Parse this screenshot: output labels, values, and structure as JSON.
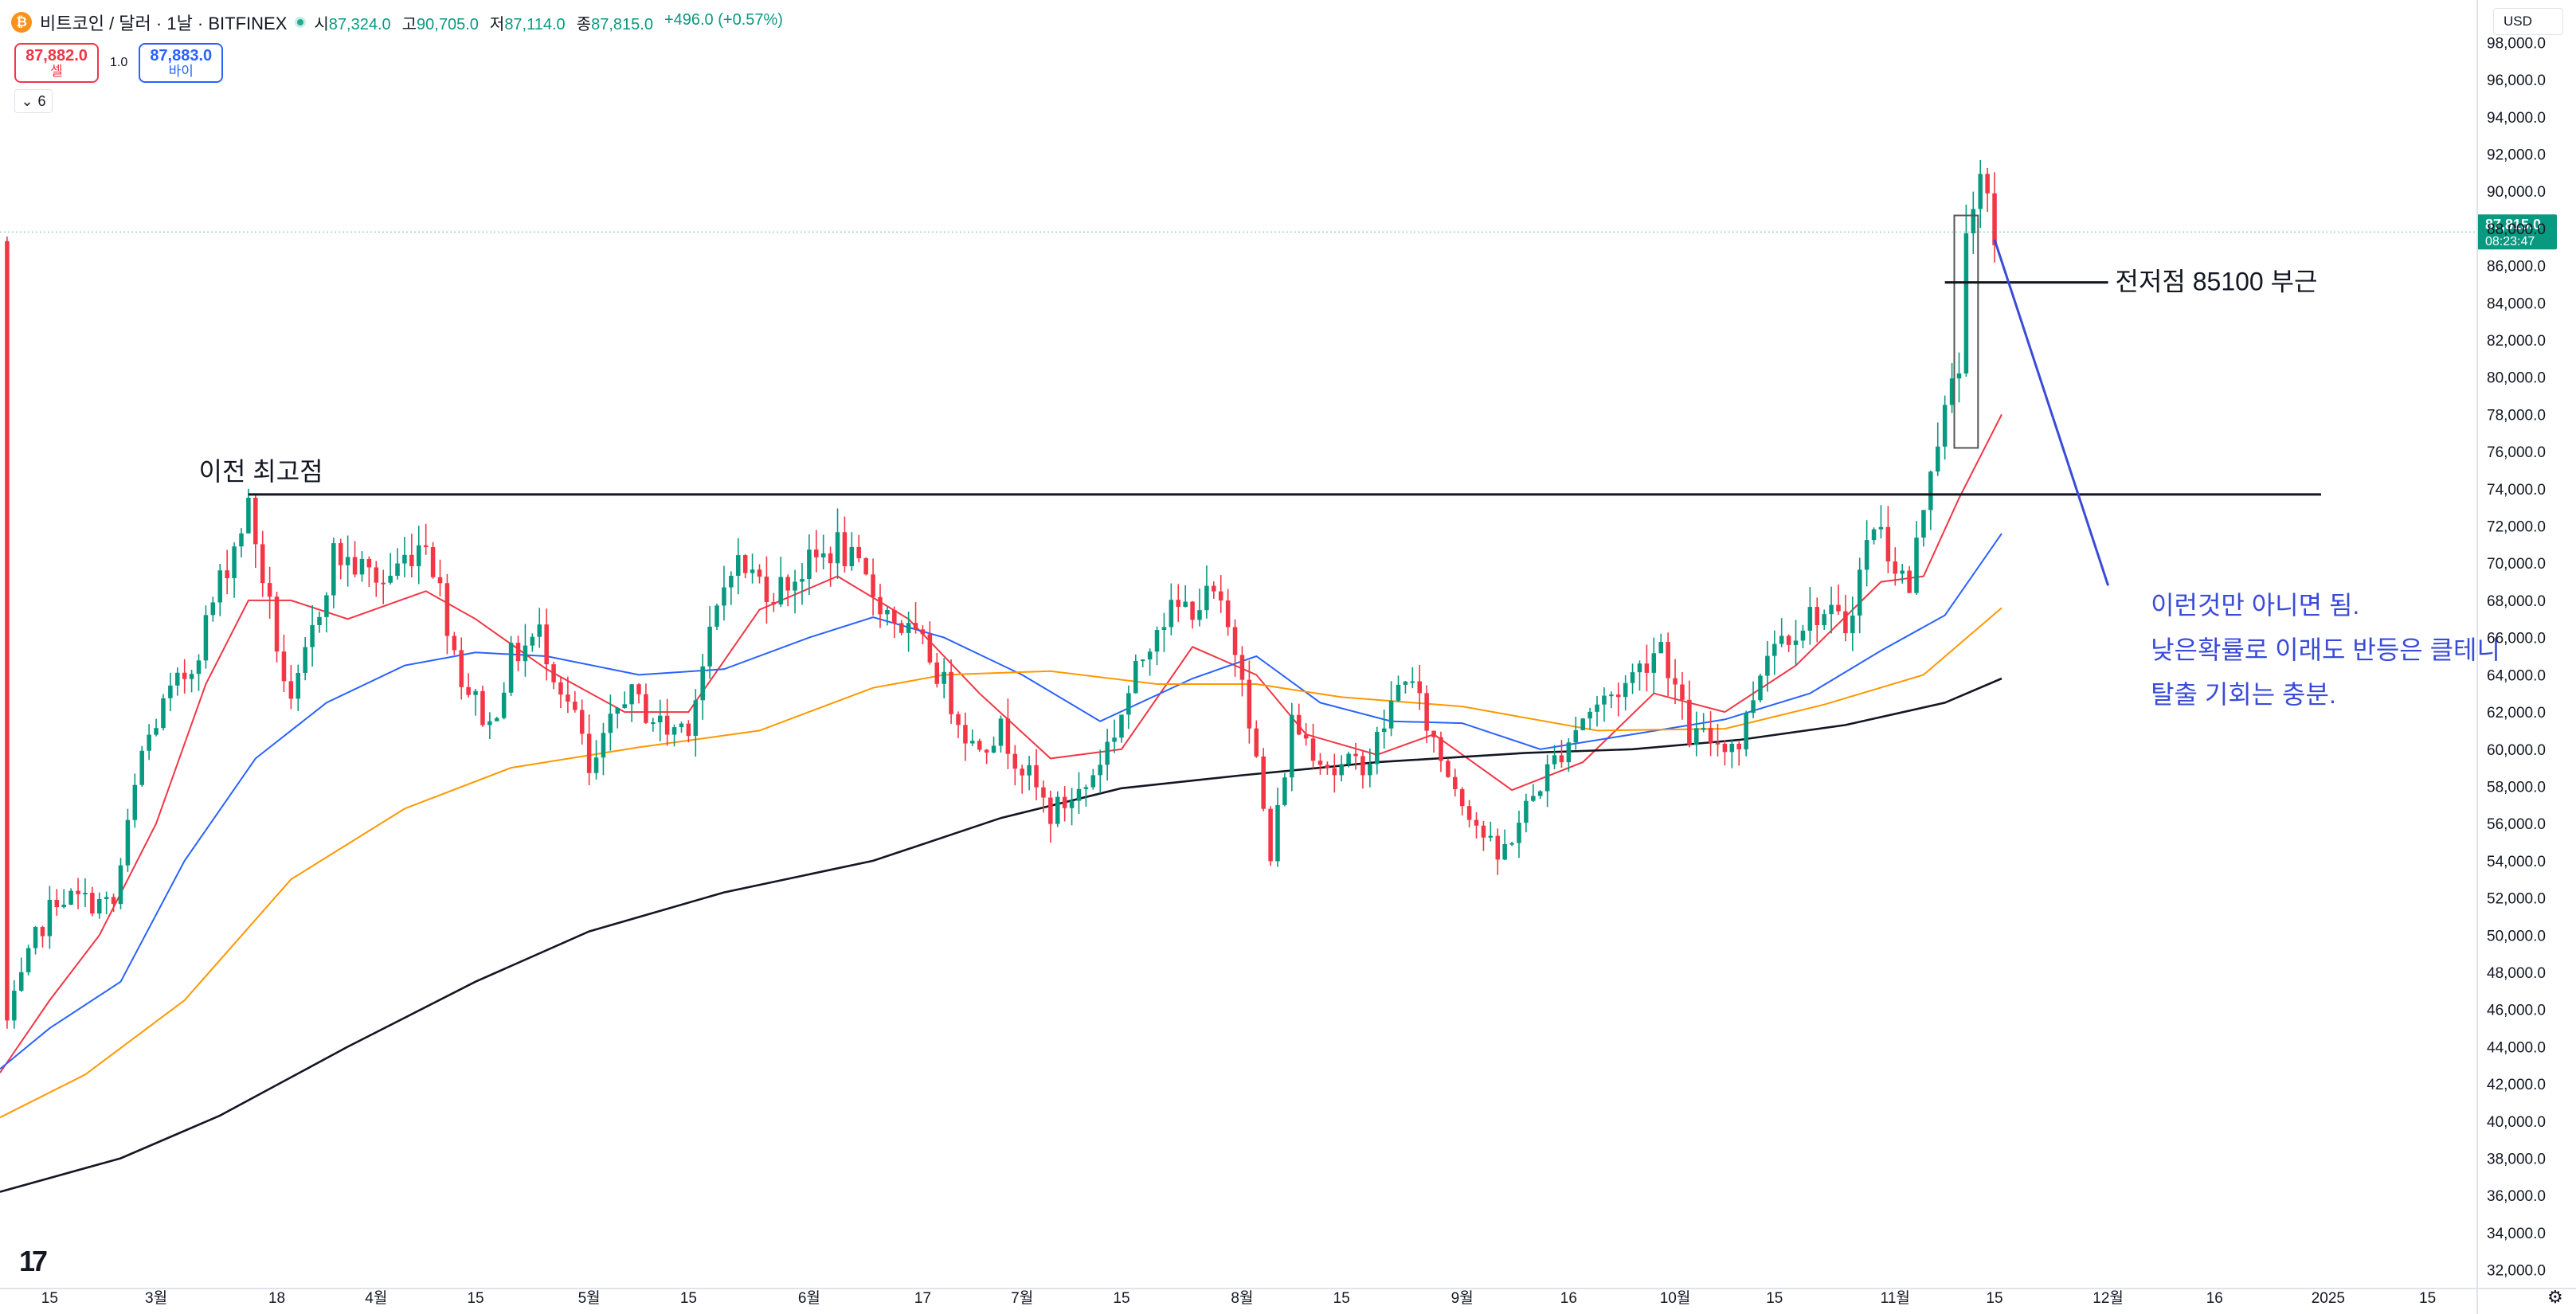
{
  "header": {
    "symbol": "비트코인 / 달러 · 1날 · BITFINEX",
    "icon_glyph": "₿",
    "ohlc": [
      {
        "key": "시",
        "value": "87,324.0"
      },
      {
        "key": "고",
        "value": "90,705.0"
      },
      {
        "key": "저",
        "value": "87,114.0"
      },
      {
        "key": "종",
        "value": "87,815.0"
      },
      {
        "key": "",
        "value": "+496.0 (+0.57%)"
      }
    ]
  },
  "trade": {
    "sell_price": "87,882.0",
    "sell_label": "셀",
    "spread": "1.0",
    "buy_price": "87,883.0",
    "buy_label": "바이"
  },
  "indicator_toggle": {
    "count": "6"
  },
  "currency": "USD",
  "logo_text": "17",
  "colors": {
    "up": "#089981",
    "down": "#f23645",
    "ema_red": "#f23645",
    "ema_blue": "#2962ff",
    "ema_orange": "#ff9800",
    "ema_black": "#131722",
    "annotation_blue": "#3a4bd8",
    "price_tag": "#089981"
  },
  "chart_data": {
    "type": "candlestick",
    "title": "",
    "y_axis": {
      "min": 31000,
      "max": 99000,
      "ticks": [
        32000,
        34000,
        36000,
        38000,
        40000,
        42000,
        44000,
        46000,
        48000,
        50000,
        52000,
        54000,
        56000,
        58000,
        60000,
        62000,
        64000,
        66000,
        68000,
        70000,
        72000,
        74000,
        76000,
        78000,
        80000,
        82000,
        84000,
        86000,
        88000,
        90000,
        92000,
        94000,
        96000,
        98000
      ],
      "tick_labels": [
        "32,000.0",
        "34,000.0",
        "36,000.0",
        "38,000.0",
        "40,000.0",
        "42,000.0",
        "44,000.0",
        "46,000.0",
        "48,000.0",
        "50,000.0",
        "52,000.0",
        "54,000.0",
        "56,000.0",
        "58,000.0",
        "60,000.0",
        "62,000.0",
        "64,000.0",
        "66,000.0",
        "68,000.0",
        "70,000.0",
        "72,000.0",
        "74,000.0",
        "76,000.0",
        "78,000.0",
        "80,000.0",
        "82,000.0",
        "84,000.0",
        "86,000.0",
        "88,000.0",
        "90,000.0",
        "92,000.0",
        "94,000.0",
        "96,000.0",
        "98,000.0"
      ]
    },
    "x_axis": {
      "start_date": "2024-02-08",
      "end_date": "2025-01-22",
      "tick_labels": [
        {
          "date": "2024-02-15",
          "label": "15"
        },
        {
          "date": "2024-03-01",
          "label": "3월"
        },
        {
          "date": "2024-03-18",
          "label": "18"
        },
        {
          "date": "2024-04-01",
          "label": "4월"
        },
        {
          "date": "2024-04-15",
          "label": "15"
        },
        {
          "date": "2024-05-01",
          "label": "5월"
        },
        {
          "date": "2024-05-15",
          "label": "15"
        },
        {
          "date": "2024-06-01",
          "label": "6월"
        },
        {
          "date": "2024-06-17",
          "label": "17"
        },
        {
          "date": "2024-07-01",
          "label": "7월"
        },
        {
          "date": "2024-07-15",
          "label": "15"
        },
        {
          "date": "2024-08-01",
          "label": "8월"
        },
        {
          "date": "2024-08-15",
          "label": "15"
        },
        {
          "date": "2024-09-01",
          "label": "9월"
        },
        {
          "date": "2024-09-16",
          "label": "16"
        },
        {
          "date": "2024-10-01",
          "label": "10월"
        },
        {
          "date": "2024-10-15",
          "label": "15"
        },
        {
          "date": "2024-11-01",
          "label": "11월"
        },
        {
          "date": "2024-11-15",
          "label": "15"
        },
        {
          "date": "2024-12-01",
          "label": "12월"
        },
        {
          "date": "2024-12-16",
          "label": "16"
        },
        {
          "date": "2025-01-01",
          "label": "2025"
        },
        {
          "date": "2025-01-15",
          "label": "15"
        }
      ]
    },
    "ohlc_path": [
      [
        "2024-02-09",
        45300
      ],
      [
        "2024-02-13",
        49800
      ],
      [
        "2024-02-16",
        52100
      ],
      [
        "2024-02-24",
        51600
      ],
      [
        "2024-02-28",
        59800
      ],
      [
        "2024-03-02",
        62300
      ],
      [
        "2024-03-06",
        64500
      ],
      [
        "2024-03-10",
        69000
      ],
      [
        "2024-03-14",
        73000
      ],
      [
        "2024-03-20",
        62000
      ],
      [
        "2024-03-26",
        70500
      ],
      [
        "2024-04-02",
        69000
      ],
      [
        "2024-04-08",
        71500
      ],
      [
        "2024-04-13",
        63900
      ],
      [
        "2024-04-17",
        61200
      ],
      [
        "2024-04-20",
        64900
      ],
      [
        "2024-04-24",
        66200
      ],
      [
        "2024-04-30",
        60600
      ],
      [
        "2024-05-01",
        58300
      ],
      [
        "2024-05-06",
        63100
      ],
      [
        "2024-05-12",
        61000
      ],
      [
        "2024-05-15",
        61500
      ],
      [
        "2024-05-21",
        70200
      ],
      [
        "2024-05-27",
        68500
      ],
      [
        "2024-06-05",
        71000
      ],
      [
        "2024-06-12",
        67400
      ],
      [
        "2024-06-18",
        65000
      ],
      [
        "2024-06-24",
        60200
      ],
      [
        "2024-06-28",
        61000
      ],
      [
        "2024-07-05",
        56500
      ],
      [
        "2024-07-10",
        58000
      ],
      [
        "2024-07-14",
        61000
      ],
      [
        "2024-07-20",
        67000
      ],
      [
        "2024-07-28",
        68200
      ],
      [
        "2024-08-01",
        64500
      ],
      [
        "2024-08-05",
        54000
      ],
      [
        "2024-08-08",
        61500
      ],
      [
        "2024-08-14",
        58800
      ],
      [
        "2024-08-19",
        59500
      ],
      [
        "2024-08-24",
        64200
      ],
      [
        "2024-08-29",
        59500
      ],
      [
        "2024-09-06",
        54000
      ],
      [
        "2024-09-12",
        58200
      ],
      [
        "2024-09-18",
        61800
      ],
      [
        "2024-09-24",
        63500
      ],
      [
        "2024-09-29",
        65800
      ],
      [
        "2024-10-03",
        60700
      ],
      [
        "2024-10-10",
        60300
      ],
      [
        "2024-10-14",
        65600
      ],
      [
        "2024-10-21",
        67400
      ],
      [
        "2024-10-25",
        66600
      ],
      [
        "2024-10-29",
        72300
      ],
      [
        "2024-11-03",
        68500
      ],
      [
        "2024-11-06",
        75600
      ],
      [
        "2024-11-10",
        80500
      ],
      [
        "2024-11-11",
        88700
      ],
      [
        "2024-11-12",
        88000
      ],
      [
        "2024-11-13",
        90400
      ],
      [
        "2024-11-15",
        87815
      ]
    ],
    "series": [
      {
        "name": "",
        "color": "#f23645",
        "points": [
          [
            "2024-02-08",
            42600
          ],
          [
            "2024-02-15",
            46500
          ],
          [
            "2024-02-22",
            50000
          ],
          [
            "2024-03-01",
            56000
          ],
          [
            "2024-03-08",
            63500
          ],
          [
            "2024-03-14",
            68000
          ],
          [
            "2024-03-20",
            68000
          ],
          [
            "2024-03-28",
            67000
          ],
          [
            "2024-04-08",
            68500
          ],
          [
            "2024-04-15",
            67000
          ],
          [
            "2024-04-25",
            64300
          ],
          [
            "2024-05-06",
            62000
          ],
          [
            "2024-05-15",
            62000
          ],
          [
            "2024-05-25",
            67500
          ],
          [
            "2024-06-05",
            69300
          ],
          [
            "2024-06-15",
            67000
          ],
          [
            "2024-06-25",
            63000
          ],
          [
            "2024-07-05",
            59500
          ],
          [
            "2024-07-15",
            60000
          ],
          [
            "2024-07-25",
            65500
          ],
          [
            "2024-08-03",
            64000
          ],
          [
            "2024-08-10",
            60800
          ],
          [
            "2024-08-20",
            59700
          ],
          [
            "2024-08-28",
            60800
          ],
          [
            "2024-09-08",
            57800
          ],
          [
            "2024-09-18",
            59300
          ],
          [
            "2024-09-28",
            63000
          ],
          [
            "2024-10-08",
            62000
          ],
          [
            "2024-10-18",
            64500
          ],
          [
            "2024-10-30",
            69000
          ],
          [
            "2024-11-05",
            69300
          ],
          [
            "2024-11-10",
            73500
          ],
          [
            "2024-11-16",
            78000
          ]
        ]
      },
      {
        "name": "",
        "color": "#2962ff",
        "points": [
          [
            "2024-02-08",
            42800
          ],
          [
            "2024-02-15",
            45000
          ],
          [
            "2024-02-25",
            47500
          ],
          [
            "2024-03-05",
            54000
          ],
          [
            "2024-03-15",
            59500
          ],
          [
            "2024-03-25",
            62500
          ],
          [
            "2024-04-05",
            64500
          ],
          [
            "2024-04-15",
            65200
          ],
          [
            "2024-04-25",
            65000
          ],
          [
            "2024-05-08",
            64000
          ],
          [
            "2024-05-20",
            64300
          ],
          [
            "2024-06-01",
            66000
          ],
          [
            "2024-06-10",
            67100
          ],
          [
            "2024-06-20",
            66000
          ],
          [
            "2024-07-01",
            64000
          ],
          [
            "2024-07-12",
            61500
          ],
          [
            "2024-07-25",
            63800
          ],
          [
            "2024-08-03",
            65000
          ],
          [
            "2024-08-12",
            62500
          ],
          [
            "2024-08-22",
            61500
          ],
          [
            "2024-09-01",
            61400
          ],
          [
            "2024-09-12",
            60000
          ],
          [
            "2024-09-25",
            60800
          ],
          [
            "2024-10-08",
            61600
          ],
          [
            "2024-10-20",
            63000
          ],
          [
            "2024-10-30",
            65300
          ],
          [
            "2024-11-08",
            67200
          ],
          [
            "2024-11-16",
            71600
          ]
        ]
      },
      {
        "name": "",
        "color": "#ff9800",
        "points": [
          [
            "2024-02-08",
            40200
          ],
          [
            "2024-02-20",
            42500
          ],
          [
            "2024-03-05",
            46500
          ],
          [
            "2024-03-20",
            53000
          ],
          [
            "2024-04-05",
            56800
          ],
          [
            "2024-04-20",
            59000
          ],
          [
            "2024-05-08",
            60100
          ],
          [
            "2024-05-25",
            61000
          ],
          [
            "2024-06-10",
            63300
          ],
          [
            "2024-06-20",
            64000
          ],
          [
            "2024-07-05",
            64200
          ],
          [
            "2024-07-20",
            63500
          ],
          [
            "2024-08-03",
            63500
          ],
          [
            "2024-08-15",
            62800
          ],
          [
            "2024-09-01",
            62300
          ],
          [
            "2024-09-20",
            61000
          ],
          [
            "2024-10-08",
            61100
          ],
          [
            "2024-10-22",
            62400
          ],
          [
            "2024-11-05",
            64000
          ],
          [
            "2024-11-16",
            67600
          ]
        ]
      },
      {
        "name": "",
        "color": "#131722",
        "points": [
          [
            "2024-02-08",
            36200
          ],
          [
            "2024-02-25",
            38000
          ],
          [
            "2024-03-10",
            40300
          ],
          [
            "2024-03-28",
            44000
          ],
          [
            "2024-04-15",
            47500
          ],
          [
            "2024-05-01",
            50200
          ],
          [
            "2024-05-20",
            52300
          ],
          [
            "2024-06-10",
            54000
          ],
          [
            "2024-06-28",
            56300
          ],
          [
            "2024-07-15",
            57900
          ],
          [
            "2024-08-01",
            58600
          ],
          [
            "2024-08-20",
            59300
          ],
          [
            "2024-09-10",
            59800
          ],
          [
            "2024-09-25",
            60000
          ],
          [
            "2024-10-10",
            60500
          ],
          [
            "2024-10-25",
            61300
          ],
          [
            "2024-11-08",
            62500
          ],
          [
            "2024-11-16",
            63800
          ]
        ]
      }
    ],
    "current_price": {
      "value": 87815,
      "label": "87,815.0",
      "countdown": "08:23:47"
    },
    "annotations": [
      {
        "id": "prev-high",
        "type": "hline",
        "price": 73700,
        "x_from": "2024-03-14",
        "x_to": "2024-12-31",
        "text": "이전 최고점",
        "text_x": "2024-03-07"
      },
      {
        "id": "prev-low",
        "type": "hline",
        "price": 85100,
        "x_from": "2024-11-08",
        "x_to": "2024-12-01",
        "text": "전저점 85100 부근",
        "text_x": "2024-12-02"
      },
      {
        "id": "drop-line",
        "type": "trendline",
        "from": [
          "2024-11-15",
          87400
        ],
        "to": [
          "2024-12-01",
          68800
        ]
      },
      {
        "id": "note",
        "type": "text",
        "lines": [
          "이런것만 아니면 됨.",
          "낮은확률로 이래도 반등은 클테니",
          "탈출 기회는 충분."
        ],
        "x": "2024-12-07",
        "y": 67700
      }
    ],
    "highlight_box": {
      "x_from": "2024-11-10",
      "x_to": "2024-11-12",
      "y_from": 76200,
      "y_to": 88700
    }
  }
}
